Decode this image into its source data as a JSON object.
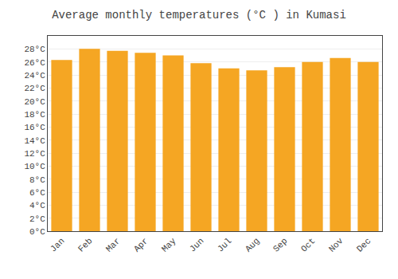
{
  "chart_data": {
    "type": "bar",
    "title": "Average monthly temperatures (°C ) in Kumasi",
    "categories": [
      "Jan",
      "Feb",
      "Mar",
      "Apr",
      "May",
      "Jun",
      "Jul",
      "Aug",
      "Sep",
      "Oct",
      "Nov",
      "Dec"
    ],
    "values": [
      26.3,
      28.0,
      27.7,
      27.4,
      27.0,
      25.8,
      25.0,
      24.7,
      25.2,
      26.0,
      26.6,
      26.0
    ],
    "color": "#F5A623",
    "ylim": [
      0,
      30
    ],
    "yticks": [
      {
        "value": 0,
        "label": "0°C"
      },
      {
        "value": 2,
        "label": "2°C"
      },
      {
        "value": 4,
        "label": "4°C"
      },
      {
        "value": 6,
        "label": "6°C"
      },
      {
        "value": 8,
        "label": "8°C"
      },
      {
        "value": 10,
        "label": "10°C"
      },
      {
        "value": 12,
        "label": "12°C"
      },
      {
        "value": 14,
        "label": "14°C"
      },
      {
        "value": 16,
        "label": "16°C"
      },
      {
        "value": 18,
        "label": "18°C"
      },
      {
        "value": 20,
        "label": "20°C"
      },
      {
        "value": 22,
        "label": "22°C"
      },
      {
        "value": 24,
        "label": "24°C"
      },
      {
        "value": 26,
        "label": "26°C"
      },
      {
        "value": 28,
        "label": "28°C"
      }
    ],
    "grid": true
  }
}
